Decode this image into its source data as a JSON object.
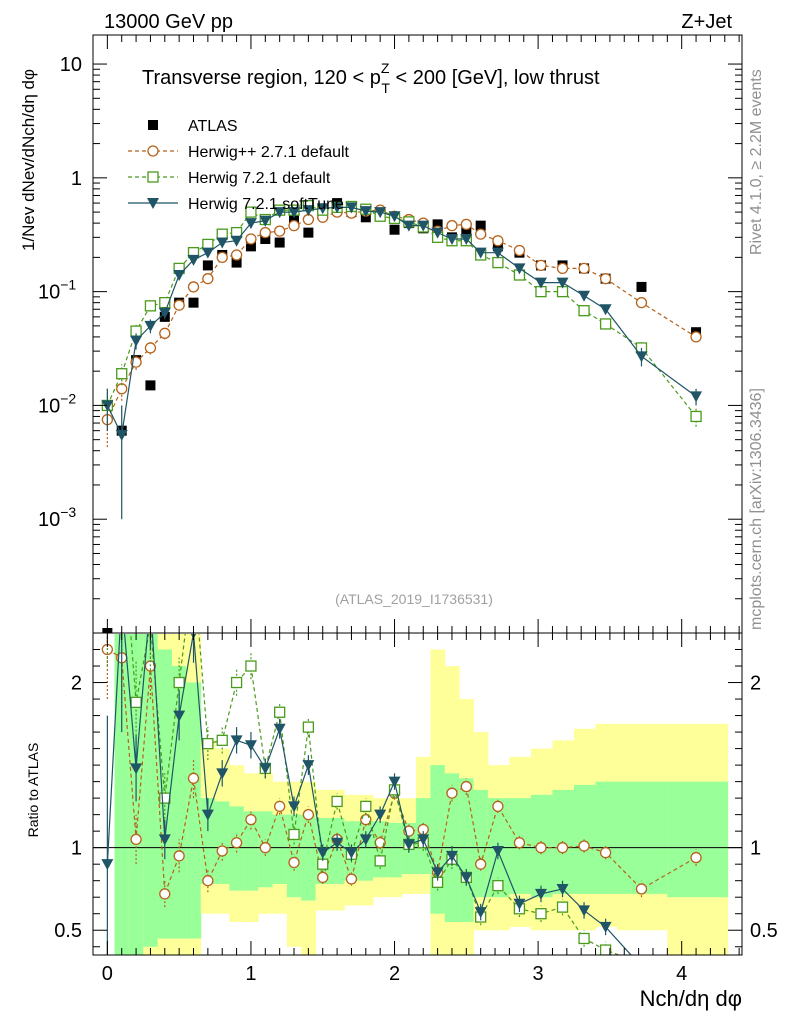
{
  "header": {
    "left": "13000 GeV pp",
    "right": "Z+Jet"
  },
  "annotation": {
    "main": "Transverse region, 120 < p",
    "pt_sup": "Z",
    "pt_sub": "T",
    "tail": " < 200 [GeV], low thrust"
  },
  "side_labels": {
    "rivet": "Rivet 4.1.0, ≥ 2.2M events",
    "mcplots": "mcplots.cern.ch [arXiv:1306.3436]"
  },
  "analysis_ref": "(ATLAS_2019_I1736531)",
  "top_ylabel": "1/Nev dNev/dNch/dη dφ",
  "bottom_ylabel": "Ratio to ATLAS",
  "xlabel": "Nch/dη dφ",
  "chart_data": {
    "type": "scatter",
    "x_range": [
      -0.1,
      4.42
    ],
    "top_y_log_range": [
      0.0001,
      18
    ],
    "ratio_y_range": [
      0.35,
      2.3
    ],
    "x_ticks": [
      {
        "v": 0,
        "label": "0"
      },
      {
        "v": 1,
        "label": "1"
      },
      {
        "v": 2,
        "label": "2"
      },
      {
        "v": 3,
        "label": "3"
      },
      {
        "v": 4,
        "label": "4"
      }
    ],
    "top_y_ticks": [
      {
        "v": 10,
        "label": "10"
      },
      {
        "v": 1,
        "label": "1"
      },
      {
        "v": 0.1,
        "label": "10",
        "exp": "−1"
      },
      {
        "v": 0.01,
        "label": "10",
        "exp": "−2"
      },
      {
        "v": 0.001,
        "label": "10",
        "exp": "−3"
      }
    ],
    "ratio_y_ticks": [
      {
        "v": 0.5,
        "label": "0.5"
      },
      {
        "v": 1,
        "label": "1"
      },
      {
        "v": 2,
        "label": "2"
      }
    ],
    "legend": [
      {
        "name": "ATLAS",
        "color": "#000000",
        "marker": "square-filled",
        "line": "none"
      },
      {
        "name": "Herwig++ 2.7.1 default",
        "color": "#b5621b",
        "marker": "circle-open",
        "line": "dashed"
      },
      {
        "name": "Herwig 7.2.1 default",
        "color": "#4a9a1c",
        "marker": "square-open",
        "line": "dashed"
      },
      {
        "name": "Herwig 7.2.1 softTune",
        "color": "#1f5566",
        "marker": "triangle-down",
        "line": "solid"
      }
    ],
    "band_edges": [
      0.05,
      0.15,
      0.25,
      0.35,
      0.45,
      0.55,
      0.65,
      0.75,
      0.85,
      0.95,
      1.05,
      1.15,
      1.25,
      1.35,
      1.45,
      1.55,
      1.65,
      1.75,
      1.85,
      1.95,
      2.05,
      2.15,
      2.25,
      2.35,
      2.45,
      2.55,
      2.65,
      2.8,
      2.95,
      3.1,
      3.25,
      3.4,
      3.55,
      3.9,
      4.32
    ],
    "band_yellow_lo": [
      0.3,
      0.3,
      0.3,
      0.3,
      0.3,
      0.3,
      0.6,
      0.6,
      0.55,
      0.55,
      0.6,
      0.6,
      0.4,
      0.3,
      0.62,
      0.62,
      0.65,
      0.65,
      0.7,
      0.7,
      0.72,
      0.72,
      0.35,
      0.3,
      0.3,
      0.5,
      0.5,
      0.52,
      0.5,
      0.5,
      0.5,
      0.52,
      0.5,
      0.3
    ],
    "band_yellow_hi": [
      2.3,
      2.3,
      2.3,
      2.3,
      2.3,
      2.3,
      1.65,
      1.6,
      1.5,
      1.45,
      1.45,
      1.4,
      1.4,
      1.4,
      1.35,
      1.35,
      1.32,
      1.32,
      1.3,
      1.3,
      1.3,
      1.55,
      2.2,
      2.1,
      1.9,
      1.7,
      1.5,
      1.55,
      1.6,
      1.65,
      1.72,
      1.75,
      1.75,
      1.75
    ],
    "band_green_lo": [
      0.35,
      0.35,
      0.4,
      0.45,
      0.45,
      0.45,
      0.78,
      0.78,
      0.74,
      0.74,
      0.76,
      0.78,
      0.7,
      0.68,
      0.78,
      0.78,
      0.8,
      0.8,
      0.82,
      0.82,
      0.84,
      0.84,
      0.6,
      0.55,
      0.55,
      0.7,
      0.7,
      0.72,
      0.7,
      0.72,
      0.72,
      0.72,
      0.72,
      0.7
    ],
    "band_green_hi": [
      2.3,
      2.3,
      2.3,
      2.2,
      2.1,
      2.0,
      1.3,
      1.28,
      1.25,
      1.22,
      1.22,
      1.2,
      1.2,
      1.2,
      1.18,
      1.18,
      1.16,
      1.16,
      1.16,
      1.15,
      1.15,
      1.3,
      1.5,
      1.45,
      1.42,
      1.35,
      1.3,
      1.3,
      1.32,
      1.35,
      1.38,
      1.4,
      1.4,
      1.4
    ],
    "x": [
      0.0,
      0.1,
      0.2,
      0.3,
      0.4,
      0.5,
      0.6,
      0.7,
      0.8,
      0.9,
      1.0,
      1.1,
      1.2,
      1.3,
      1.4,
      1.5,
      1.6,
      1.7,
      1.8,
      1.9,
      2.0,
      2.1,
      2.2,
      2.3,
      2.4,
      2.5,
      2.6,
      2.72,
      2.87,
      3.02,
      3.17,
      3.32,
      3.47,
      3.72,
      4.1
    ],
    "series": [
      {
        "name": "ATLAS",
        "color": "#000000",
        "marker": "square-filled",
        "values": [
          0.0001,
          0.006,
          0.025,
          0.015,
          0.06,
          0.08,
          0.08,
          0.17,
          0.21,
          0.18,
          0.25,
          0.29,
          0.27,
          0.43,
          0.33,
          0.52,
          0.6,
          0.5,
          0.45,
          0.5,
          0.35,
          0.4,
          0.36,
          0.39,
          0.3,
          0.34,
          0.38,
          0.25,
          0.22,
          0.17,
          0.17,
          0.16,
          0.13,
          0.11,
          0.044
        ],
        "errors": [
          0,
          0,
          0,
          0,
          0,
          0,
          0,
          0,
          0,
          0,
          0,
          0,
          0,
          0,
          0,
          0,
          0,
          0,
          0,
          0,
          0,
          0,
          0,
          0,
          0,
          0,
          0,
          0,
          0,
          0,
          0,
          0,
          0,
          0,
          0
        ]
      },
      {
        "name": "Herwig++ 2.7.1 default",
        "color": "#b5621b",
        "marker": "circle-open",
        "values": [
          0.0075,
          0.014,
          0.024,
          0.032,
          0.043,
          0.076,
          0.11,
          0.13,
          0.2,
          0.21,
          0.29,
          0.33,
          0.34,
          0.38,
          0.43,
          0.45,
          0.5,
          0.49,
          0.51,
          0.52,
          0.46,
          0.43,
          0.4,
          0.34,
          0.38,
          0.39,
          0.32,
          0.28,
          0.23,
          0.17,
          0.16,
          0.16,
          0.13,
          0.08,
          0.04
        ],
        "errors": [
          0.0032,
          0.003,
          0.0035,
          0.004,
          0.005,
          0.007,
          0.008,
          0.01,
          0.012,
          0.012,
          0.015,
          0.015,
          0.015,
          0.015,
          0.015,
          0.015,
          0.015,
          0.015,
          0.015,
          0.015,
          0.015,
          0.015,
          0.015,
          0.012,
          0.012,
          0.012,
          0.012,
          0.01,
          0.008,
          0.006,
          0.006,
          0.006,
          0.005,
          0.004,
          0.003
        ],
        "ratio": [
          2.2,
          2.15,
          1.05,
          2.1,
          0.72,
          0.95,
          1.42,
          0.8,
          0.98,
          1.03,
          1.17,
          1.0,
          1.25,
          0.91,
          1.2,
          0.82,
          1.05,
          0.81,
          1.17,
          1.03,
          1.33,
          1.1,
          1.11,
          0.85,
          1.33,
          1.37,
          0.9,
          1.25,
          1.03,
          1.0,
          1.0,
          1.01,
          0.97,
          0.75,
          0.94
        ],
        "ratio_err": [
          0.3,
          0.3,
          0.15,
          0.2,
          0.08,
          0.1,
          0.12,
          0.07,
          0.06,
          0.06,
          0.06,
          0.05,
          0.05,
          0.05,
          0.05,
          0.04,
          0.04,
          0.04,
          0.04,
          0.04,
          0.04,
          0.04,
          0.04,
          0.04,
          0.05,
          0.05,
          0.04,
          0.04,
          0.04,
          0.04,
          0.04,
          0.04,
          0.04,
          0.05,
          0.05
        ]
      },
      {
        "name": "Herwig 7.2.1 default",
        "color": "#4a9a1c",
        "marker": "square-open",
        "values": [
          0.01,
          0.019,
          0.045,
          0.075,
          0.08,
          0.16,
          0.22,
          0.26,
          0.32,
          0.33,
          0.5,
          0.43,
          0.52,
          0.52,
          0.57,
          0.52,
          0.55,
          0.56,
          0.53,
          0.46,
          0.44,
          0.41,
          0.37,
          0.3,
          0.28,
          0.28,
          0.21,
          0.18,
          0.14,
          0.1,
          0.1,
          0.068,
          0.052,
          0.032,
          0.008
        ],
        "errors": [
          0.004,
          0.004,
          0.006,
          0.008,
          0.008,
          0.012,
          0.015,
          0.015,
          0.015,
          0.015,
          0.02,
          0.02,
          0.02,
          0.02,
          0.02,
          0.02,
          0.02,
          0.02,
          0.02,
          0.02,
          0.02,
          0.02,
          0.015,
          0.015,
          0.015,
          0.012,
          0.01,
          0.01,
          0.008,
          0.006,
          0.006,
          0.006,
          0.005,
          0.004,
          0.0015
        ],
        "ratio": [
          2.5,
          3.0,
          1.88,
          2.35,
          1.3,
          2.0,
          2.7,
          1.63,
          1.65,
          2.0,
          2.1,
          1.48,
          1.82,
          1.08,
          1.73,
          0.9,
          1.28,
          0.96,
          1.25,
          0.92,
          1.35,
          1.02,
          1.03,
          0.79,
          0.93,
          0.82,
          0.58,
          0.77,
          0.63,
          0.6,
          0.64,
          0.45,
          0.38,
          0.3,
          0.2
        ],
        "ratio_err": [
          0.4,
          0.35,
          0.25,
          0.3,
          0.15,
          0.15,
          0.18,
          0.1,
          0.08,
          0.08,
          0.08,
          0.06,
          0.06,
          0.06,
          0.06,
          0.05,
          0.05,
          0.05,
          0.05,
          0.05,
          0.05,
          0.05,
          0.05,
          0.05,
          0.06,
          0.05,
          0.05,
          0.05,
          0.05,
          0.05,
          0.05,
          0.05,
          0.05,
          0.05,
          0.05
        ]
      },
      {
        "name": "Herwig 7.2.1 softTune",
        "color": "#1f5566",
        "marker": "triangle-down",
        "values": [
          0.01,
          0.0055,
          0.037,
          0.05,
          0.065,
          0.14,
          0.19,
          0.22,
          0.27,
          0.28,
          0.4,
          0.42,
          0.5,
          0.5,
          0.52,
          0.54,
          0.55,
          0.55,
          0.51,
          0.5,
          0.46,
          0.38,
          0.38,
          0.33,
          0.29,
          0.29,
          0.22,
          0.22,
          0.16,
          0.12,
          0.12,
          0.092,
          0.07,
          0.027,
          0.012
        ],
        "errors": [
          0.004,
          0.0045,
          0.006,
          0.007,
          0.008,
          0.012,
          0.015,
          0.015,
          0.015,
          0.015,
          0.02,
          0.02,
          0.02,
          0.02,
          0.02,
          0.02,
          0.02,
          0.02,
          0.02,
          0.02,
          0.02,
          0.02,
          0.015,
          0.015,
          0.015,
          0.012,
          0.01,
          0.01,
          0.008,
          0.006,
          0.006,
          0.006,
          0.005,
          0.005,
          0.002
        ],
        "ratio": [
          0.9,
          2.5,
          1.48,
          2.5,
          1.05,
          1.8,
          2.3,
          1.2,
          1.45,
          1.65,
          1.62,
          1.48,
          1.72,
          1.25,
          1.5,
          0.97,
          1.03,
          0.97,
          1.05,
          1.2,
          1.4,
          1.02,
          1.05,
          0.85,
          0.95,
          0.82,
          0.61,
          0.98,
          0.66,
          0.72,
          0.75,
          0.62,
          0.52,
          0.28,
          0.3
        ],
        "ratio_err": [
          0.9,
          0.8,
          0.2,
          0.3,
          0.12,
          0.15,
          0.18,
          0.1,
          0.08,
          0.08,
          0.08,
          0.06,
          0.06,
          0.06,
          0.06,
          0.05,
          0.05,
          0.05,
          0.05,
          0.05,
          0.05,
          0.05,
          0.05,
          0.05,
          0.06,
          0.05,
          0.05,
          0.05,
          0.05,
          0.05,
          0.05,
          0.05,
          0.05,
          0.05,
          0.05
        ]
      }
    ]
  }
}
